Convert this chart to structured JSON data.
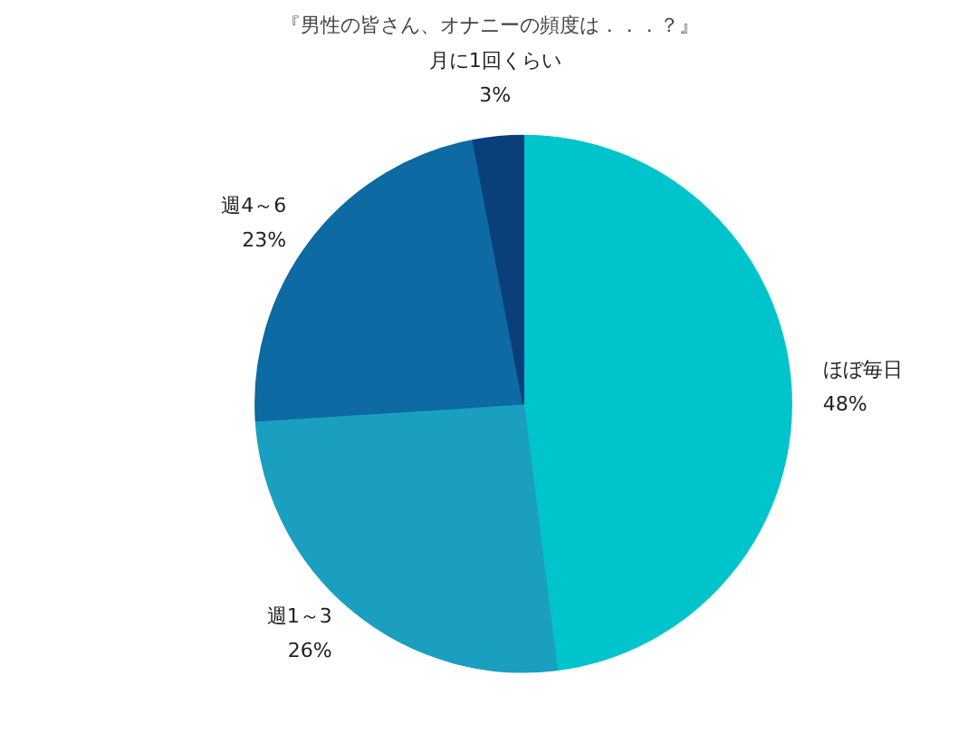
{
  "chart_data": {
    "type": "pie",
    "title": "『男性の皆さん、オナニーの頻度は．．．？』",
    "categories": [
      "ほぼ毎日",
      "週1～3",
      "週4～6",
      "月に1回くらい"
    ],
    "values": [
      48,
      26,
      23,
      3
    ],
    "colors": [
      "#00c4cc",
      "#1a9fc0",
      "#0d6aa2",
      "#0a3f7c"
    ],
    "value_labels": [
      "48%",
      "26%",
      "23%",
      "3%"
    ]
  }
}
